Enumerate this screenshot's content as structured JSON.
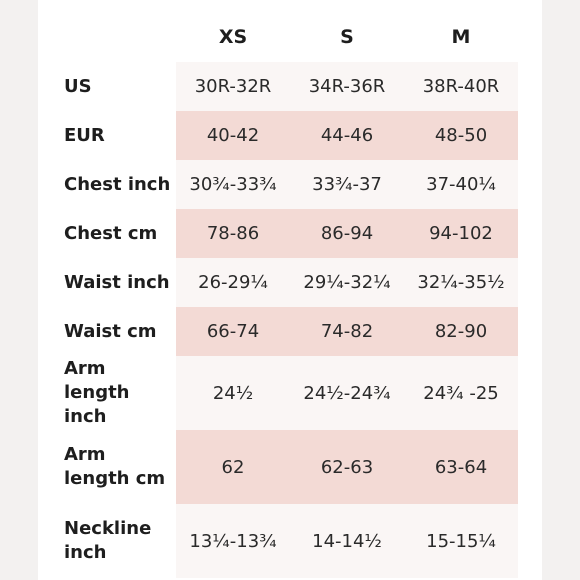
{
  "sizes": [
    "XS",
    "S",
    "M"
  ],
  "rows": [
    {
      "label": "US",
      "values": [
        "30R-32R",
        "34R-36R",
        "38R-40R"
      ]
    },
    {
      "label": "EUR",
      "values": [
        "40-42",
        "44-46",
        "48-50"
      ]
    },
    {
      "label": "Chest inch",
      "values": [
        "30¾-33¾",
        "33¾-37",
        "37-40¼"
      ]
    },
    {
      "label": "Chest cm",
      "values": [
        "78-86",
        "86-94",
        "94-102"
      ]
    },
    {
      "label": "Waist inch",
      "values": [
        "26-29¼",
        "29¼-32¼",
        "32¼-35½"
      ]
    },
    {
      "label": "Waist cm",
      "values": [
        "66-74",
        "74-82",
        "82-90"
      ]
    },
    {
      "label": "Arm length inch",
      "values": [
        "24½",
        "24½-24¾",
        "24¾ -25"
      ]
    },
    {
      "label": "Arm length cm",
      "values": [
        "62",
        "62-63",
        "63-64"
      ]
    },
    {
      "label": "Neckline inch",
      "values": [
        "13¼-13¾",
        "14-14½",
        "15-15¼"
      ]
    }
  ],
  "colors": {
    "background": "#f3f1f0",
    "sheet": "#ffffff",
    "row_light": "#faf6f5",
    "row_pink": "#f3dad5",
    "text": "#1e1e1e"
  }
}
